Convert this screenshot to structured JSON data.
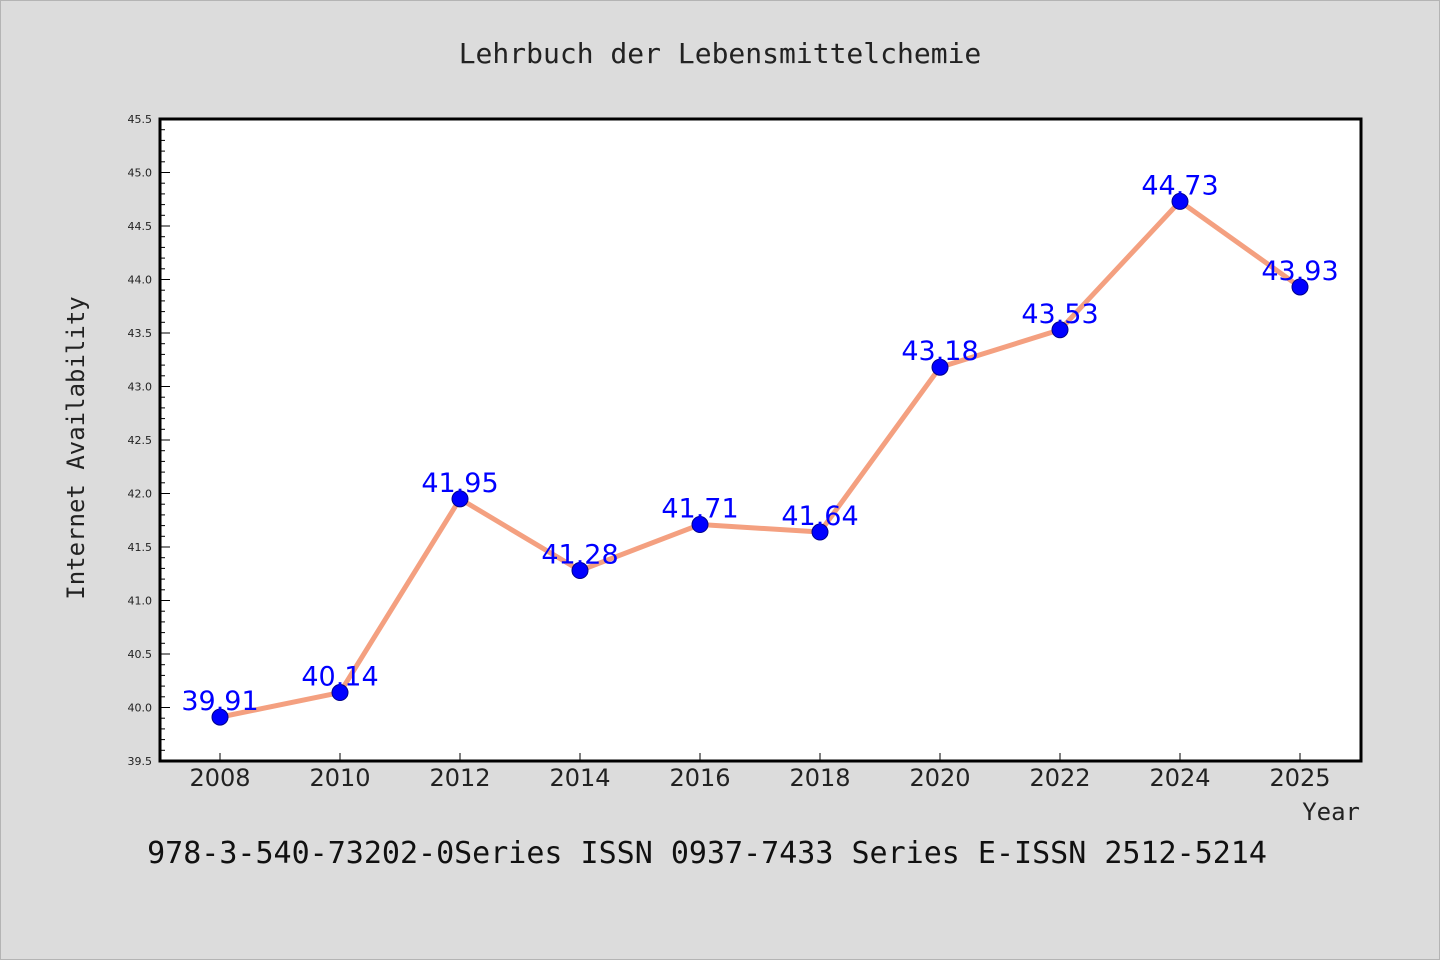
{
  "chart_data": {
    "type": "line",
    "title": "Lehrbuch der Lebensmittelchemie",
    "xlabel": "Year",
    "ylabel": "Internet Availability",
    "footer": "978-3-540-73202-0Series ISSN 0937-7433 Series E-ISSN 2512-5214",
    "x": [
      2008,
      2010,
      2012,
      2014,
      2016,
      2018,
      2020,
      2022,
      2024,
      2025
    ],
    "x_tick_labels": [
      "2008",
      "2010",
      "2012",
      "2014",
      "2016",
      "2018",
      "2020",
      "2022",
      "2024",
      "2025"
    ],
    "y": [
      39.91,
      40.14,
      41.95,
      41.28,
      41.71,
      41.64,
      43.18,
      43.53,
      44.73,
      43.93
    ],
    "data_labels": [
      "39.91",
      "40.14",
      "41.95",
      "41.28",
      "41.71",
      "41.64",
      "43.18",
      "43.53",
      "44.73",
      "43.93"
    ],
    "ylim": [
      39.5,
      45.5
    ],
    "y_ticks": [
      39.5,
      40.0,
      40.5,
      41.0,
      41.5,
      42.0,
      42.5,
      43.0,
      43.5,
      44.0,
      44.5,
      45.0,
      45.5
    ],
    "y_tick_labels": [
      "39.5",
      "40.0",
      "40.5",
      "41.0",
      "41.5",
      "42.0",
      "42.5",
      "43.0",
      "43.5",
      "44.0",
      "44.5",
      "45.0",
      "45.5"
    ],
    "grid": false,
    "legend": "none",
    "colors": {
      "background": "#dcdcdc",
      "plot_background": "#ffffff",
      "line": "#f4a080",
      "marker": "#0000ff",
      "data_label": "#0000ff"
    }
  }
}
